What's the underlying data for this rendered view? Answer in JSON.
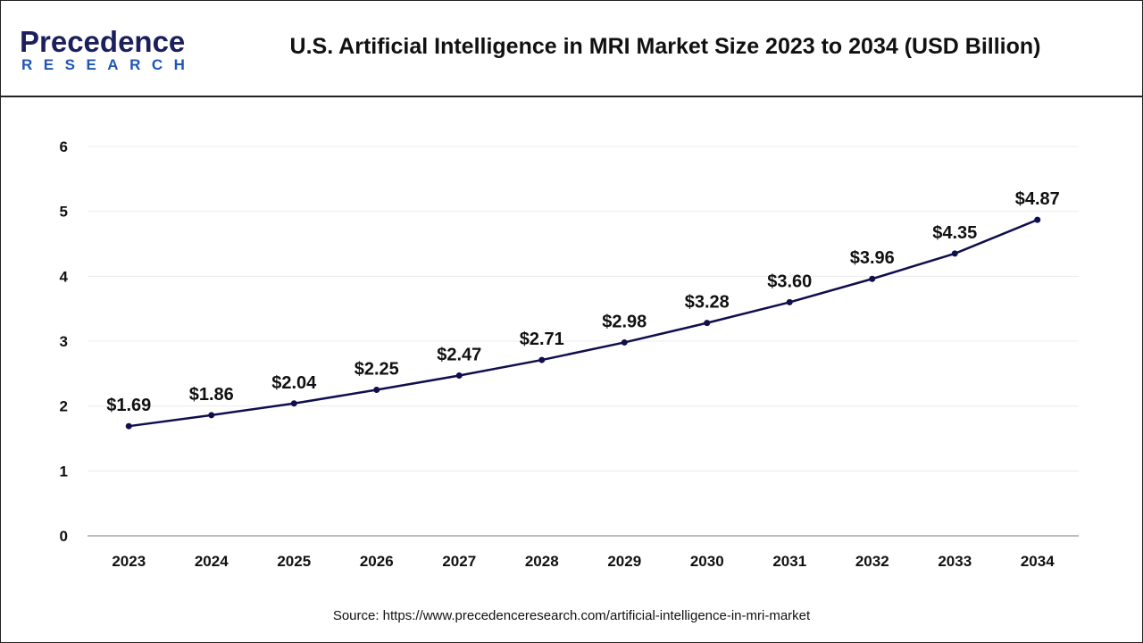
{
  "brand": {
    "logo_top": "Precedence",
    "logo_bottom": "RESEARCH"
  },
  "title": "U.S. Artificial Intelligence in MRI Market Size 2023 to 2034 (USD Billion)",
  "source": "Source: https://www.precedenceresearch.com/artificial-intelligence-in-mri-market",
  "chart_data": {
    "type": "line",
    "title": "U.S. Artificial Intelligence in MRI Market Size 2023 to 2034 (USD Billion)",
    "categories": [
      "2023",
      "2024",
      "2025",
      "2026",
      "2027",
      "2028",
      "2029",
      "2030",
      "2031",
      "2032",
      "2033",
      "2034"
    ],
    "values": [
      1.69,
      1.86,
      2.04,
      2.25,
      2.47,
      2.71,
      2.98,
      3.28,
      3.6,
      3.96,
      4.35,
      4.87
    ],
    "labels": [
      "$1.69",
      "$1.86",
      "$2.04",
      "$2.25",
      "$2.47",
      "$2.71",
      "$2.98",
      "$3.28",
      "$3.60",
      "$3.96",
      "$4.35",
      "$4.87"
    ],
    "yticks": [
      0,
      1,
      2,
      3,
      4,
      5,
      6
    ],
    "ylim": [
      0,
      6
    ],
    "grid": true,
    "line_color": "#0f0f4d"
  }
}
